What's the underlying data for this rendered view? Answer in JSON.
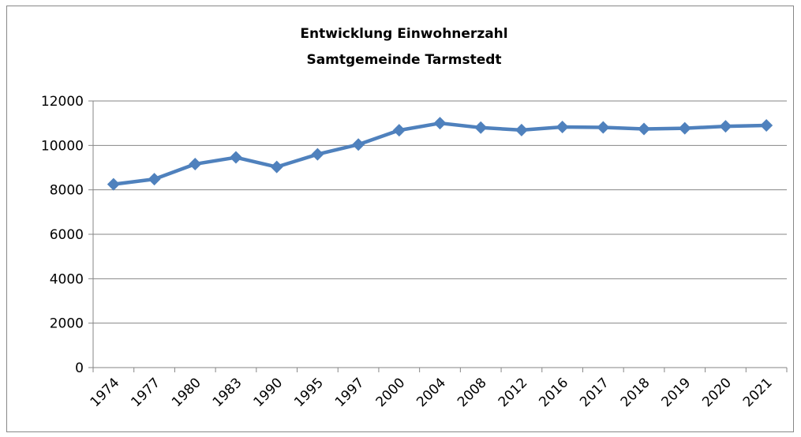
{
  "chart_data": {
    "type": "line",
    "title": [
      "Entwicklung Einwohnerzahl",
      "Samtgemeinde Tarmstedt"
    ],
    "categories": [
      "1974",
      "1977",
      "1980",
      "1983",
      "1990",
      "1995",
      "1997",
      "2000",
      "2004",
      "2008",
      "2012",
      "2016",
      "2017",
      "2018",
      "2019",
      "2020",
      "2021"
    ],
    "series": [
      {
        "name": "Einwohner",
        "color": "#4f81bd",
        "values": [
          8250,
          8480,
          9160,
          9460,
          9030,
          9600,
          10040,
          10680,
          11000,
          10800,
          10690,
          10830,
          10810,
          10740,
          10770,
          10860,
          10900
        ]
      }
    ],
    "ylim": [
      0,
      12000
    ],
    "yticks": [
      0,
      2000,
      4000,
      6000,
      8000,
      10000,
      12000
    ],
    "grid": true,
    "legend": false
  }
}
